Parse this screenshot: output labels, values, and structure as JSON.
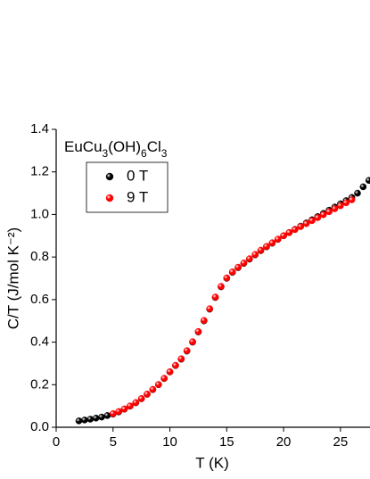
{
  "chart_data": {
    "type": "scatter",
    "annotation": "EuCu3(OH)6Cl3",
    "x_label": "T (K)",
    "y_label": "C/T (J/mol K⁻²)",
    "xlim": [
      0,
      27.6
    ],
    "ylim": [
      0,
      1.4
    ],
    "xticks": [
      0,
      5,
      10,
      15,
      20,
      25
    ],
    "yticks": [
      {
        "value": 0,
        "label": "0.0"
      },
      {
        "value": 0.2,
        "label": "0.2"
      },
      {
        "value": 0.4,
        "label": "0.4"
      },
      {
        "value": 0.6,
        "label": "0.6"
      },
      {
        "value": 0.8,
        "label": "0.8"
      },
      {
        "value": 1.0,
        "label": "1.0"
      },
      {
        "value": 1.2,
        "label": "1.2"
      },
      {
        "value": 1.4,
        "label": "1.4"
      }
    ],
    "legend": "upper left",
    "series": [
      {
        "name": "0 T",
        "color": "#000000",
        "x": [
          2,
          2.5,
          3,
          3.5,
          4,
          4.5,
          5,
          5.5,
          6,
          6.5,
          7,
          7.5,
          8,
          8.5,
          9,
          9.5,
          10,
          10.5,
          11,
          11.5,
          12,
          12.5,
          13,
          13.5,
          14,
          14.5,
          15,
          15.5,
          16,
          16.5,
          17,
          17.5,
          18,
          18.5,
          19,
          19.5,
          20,
          20.5,
          21,
          21.5,
          22,
          22.5,
          23,
          23.5,
          24,
          24.5,
          25,
          25.5,
          26,
          26.5,
          27,
          27.5
        ],
        "values": [
          0.03,
          0.034,
          0.038,
          0.043,
          0.048,
          0.055,
          0.062,
          0.072,
          0.085,
          0.099,
          0.115,
          0.134,
          0.155,
          0.177,
          0.2,
          0.229,
          0.26,
          0.29,
          0.32,
          0.358,
          0.4,
          0.448,
          0.5,
          0.555,
          0.61,
          0.66,
          0.7,
          0.728,
          0.75,
          0.77,
          0.79,
          0.81,
          0.83,
          0.848,
          0.865,
          0.883,
          0.9,
          0.915,
          0.93,
          0.945,
          0.96,
          0.975,
          0.99,
          1.005,
          1.02,
          1.035,
          1.05,
          1.065,
          1.08,
          1.1,
          1.13,
          1.16
        ]
      },
      {
        "name": "9 T",
        "color": "#ff0000",
        "x": [
          5,
          5.5,
          6,
          6.5,
          7,
          7.5,
          8,
          8.5,
          9,
          9.5,
          10,
          10.5,
          11,
          11.5,
          12,
          12.5,
          13,
          13.5,
          14,
          14.5,
          15,
          15.5,
          16,
          16.5,
          17,
          17.5,
          18,
          18.5,
          19,
          19.5,
          20,
          20.5,
          21,
          21.5,
          22,
          22.5,
          23,
          23.5,
          24,
          24.5,
          25,
          25.5,
          26
        ],
        "values": [
          0.064,
          0.074,
          0.086,
          0.1,
          0.116,
          0.135,
          0.156,
          0.178,
          0.201,
          0.23,
          0.261,
          0.291,
          0.322,
          0.36,
          0.402,
          0.45,
          0.502,
          0.557,
          0.612,
          0.662,
          0.702,
          0.73,
          0.752,
          0.772,
          0.792,
          0.812,
          0.832,
          0.85,
          0.867,
          0.884,
          0.9,
          0.915,
          0.929,
          0.943,
          0.957,
          0.971,
          0.985,
          0.999,
          1.013,
          1.027,
          1.041,
          1.055,
          1.069
        ]
      }
    ]
  }
}
